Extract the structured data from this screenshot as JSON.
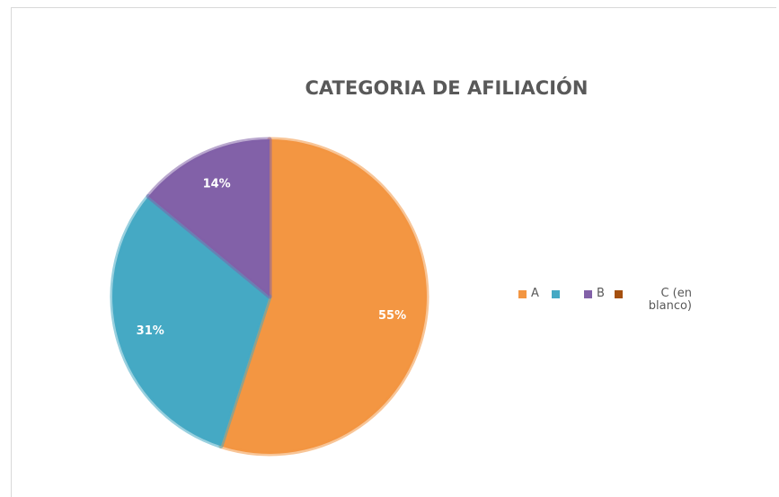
{
  "chart_data": {
    "type": "pie",
    "title": "CATEGORIA DE AFILIACIÓN",
    "categories": [
      "A",
      null,
      "B",
      "C (en blanco)"
    ],
    "values": [
      55,
      31,
      14,
      0
    ],
    "value_labels": [
      "55%",
      "31%",
      "14%",
      null
    ],
    "colors": [
      "#f39642",
      "#45a9c4",
      "#8261a8",
      "#a5500f"
    ],
    "legend": "right"
  }
}
